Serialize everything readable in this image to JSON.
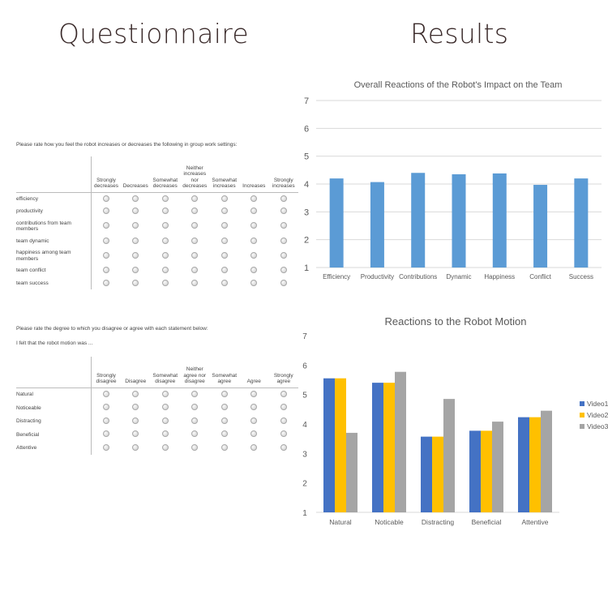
{
  "headings": {
    "left": "Questionnaire",
    "right": "Results"
  },
  "survey1": {
    "prompt": "Please rate how you feel the robot increases or decreases the following in group work settings:",
    "columns": [
      "Strongly decreases",
      "Decreases",
      "Somewhat decreases",
      "Neither increases nor decreases",
      "Somewhat increases",
      "Increases",
      "Strongly increases"
    ],
    "rows": [
      "efficiency",
      "productivity",
      "contributions from team members",
      "team dynamic",
      "happiness among team members",
      "team conflict",
      "team success"
    ]
  },
  "survey2": {
    "prompt": "Please rate the degree to which you disagree or agree with each statement below:",
    "subprompt": "I felt that the robot motion was ...",
    "columns": [
      "Strongly disagree",
      "Disagree",
      "Somewhat disagree",
      "Neither agree nor disagree",
      "Somewhat agree",
      "Agree",
      "Strongly agree"
    ],
    "rows": [
      "Natural",
      "Noticeable",
      "Distracting",
      "Beneficial",
      "Attentive"
    ]
  },
  "chart_data": [
    {
      "type": "bar",
      "title": "Overall Reactions of the Robot's Impact on the Team",
      "categories": [
        "Efficiency",
        "Productivity",
        "Contributions",
        "Dynamic",
        "Happiness",
        "Conflict",
        "Success"
      ],
      "values": [
        4.2,
        4.07,
        4.4,
        4.35,
        4.38,
        3.97,
        4.2
      ],
      "ylim": [
        1,
        7
      ],
      "yticks": [
        1,
        2,
        3,
        4,
        5,
        6,
        7
      ],
      "grid": true,
      "color": "#5b9bd5"
    },
    {
      "type": "bar",
      "title": "Reactions to the Robot Motion",
      "categories": [
        "Natural",
        "Noticable",
        "Distracting",
        "Beneficial",
        "Attentive"
      ],
      "series": [
        {
          "name": "Video1",
          "values": [
            5.55,
            5.4,
            3.57,
            3.77,
            4.23
          ],
          "color": "#4472c4"
        },
        {
          "name": "Video2",
          "values": [
            5.55,
            5.4,
            3.57,
            3.77,
            4.23
          ],
          "color": "#ffc000"
        },
        {
          "name": "Video3",
          "values": [
            3.7,
            5.77,
            4.85,
            4.08,
            4.45
          ],
          "color": "#a5a5a5"
        }
      ],
      "ylim": [
        1,
        7
      ],
      "yticks": [
        1,
        2,
        3,
        4,
        5,
        6,
        7
      ],
      "grid": false,
      "legend": "right"
    }
  ]
}
